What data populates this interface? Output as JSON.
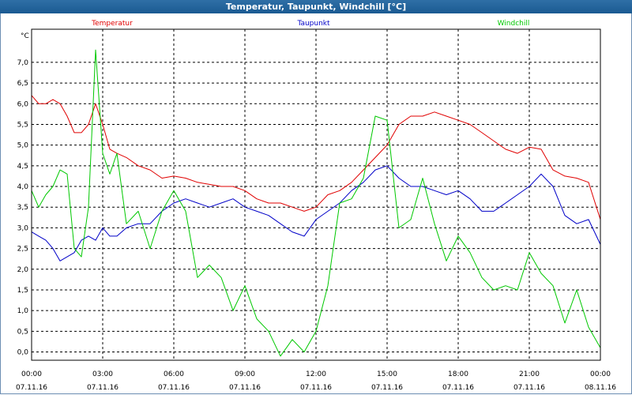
{
  "window": {
    "title": "Temperatur, Taupunkt, Windchill [°C]"
  },
  "chart_data": {
    "type": "line",
    "title": "Temperatur, Taupunkt, Windchill [°C]",
    "ylabel": "°C",
    "ylim": [
      -0.2,
      7.8
    ],
    "xlim": [
      0,
      24
    ],
    "y_ticks": [
      "0,0",
      "0,5",
      "1,0",
      "1,5",
      "2,0",
      "2,5",
      "3,0",
      "3,5",
      "4,0",
      "4,5",
      "5,0",
      "5,5",
      "6,0",
      "6,5",
      "7,0"
    ],
    "y_tick_values": [
      0,
      0.5,
      1,
      1.5,
      2,
      2.5,
      3,
      3.5,
      4,
      4.5,
      5,
      5.5,
      6,
      6.5,
      7
    ],
    "x_ticks": [
      {
        "x": 0,
        "time": "00:00",
        "date": "07.11.16"
      },
      {
        "x": 3,
        "time": "03:00",
        "date": "07.11.16"
      },
      {
        "x": 6,
        "time": "06:00",
        "date": "07.11.16"
      },
      {
        "x": 9,
        "time": "09:00",
        "date": "07.11.16"
      },
      {
        "x": 12,
        "time": "12:00",
        "date": "07.11.16"
      },
      {
        "x": 15,
        "time": "15:00",
        "date": "07.11.16"
      },
      {
        "x": 18,
        "time": "18:00",
        "date": "07.11.16"
      },
      {
        "x": 21,
        "time": "21:00",
        "date": "07.11.16"
      },
      {
        "x": 24,
        "time": "00:00",
        "date": "08.11.16"
      }
    ],
    "grid": true,
    "series": [
      {
        "name": "Temperatur",
        "color": "#e00000",
        "x": [
          0,
          0.3,
          0.6,
          0.9,
          1.2,
          1.5,
          1.8,
          2.1,
          2.4,
          2.7,
          3.0,
          3.3,
          3.6,
          4.0,
          4.5,
          5.0,
          5.5,
          6.0,
          6.5,
          7.0,
          7.5,
          8.0,
          8.5,
          9.0,
          9.5,
          10.0,
          10.5,
          11.0,
          11.5,
          12.0,
          12.5,
          13.0,
          13.5,
          14.0,
          14.5,
          15.0,
          15.5,
          16.0,
          16.5,
          17.0,
          17.5,
          18.0,
          18.5,
          19.0,
          19.5,
          20.0,
          20.5,
          21.0,
          21.5,
          22.0,
          22.5,
          23.0,
          23.5,
          24.0
        ],
        "y": [
          6.2,
          6.0,
          6.0,
          6.1,
          6.0,
          5.7,
          5.3,
          5.3,
          5.5,
          6.0,
          5.5,
          4.9,
          4.8,
          4.7,
          4.5,
          4.4,
          4.2,
          4.25,
          4.2,
          4.1,
          4.05,
          4.0,
          4.0,
          3.9,
          3.7,
          3.6,
          3.6,
          3.5,
          3.4,
          3.5,
          3.8,
          3.9,
          4.1,
          4.4,
          4.7,
          5.0,
          5.5,
          5.7,
          5.7,
          5.8,
          5.7,
          5.6,
          5.5,
          5.3,
          5.1,
          4.9,
          4.8,
          4.95,
          4.9,
          4.4,
          4.25,
          4.2,
          4.1,
          3.2
        ]
      },
      {
        "name": "Taupunkt",
        "color": "#0000c8",
        "x": [
          0,
          0.3,
          0.6,
          0.9,
          1.2,
          1.5,
          1.8,
          2.1,
          2.4,
          2.7,
          3.0,
          3.3,
          3.6,
          4.0,
          4.5,
          5.0,
          5.5,
          6.0,
          6.5,
          7.0,
          7.5,
          8.0,
          8.5,
          9.0,
          9.5,
          10.0,
          10.5,
          11.0,
          11.5,
          12.0,
          12.5,
          13.0,
          13.5,
          14.0,
          14.5,
          15.0,
          15.5,
          16.0,
          16.5,
          17.0,
          17.5,
          18.0,
          18.5,
          19.0,
          19.5,
          20.0,
          20.5,
          21.0,
          21.5,
          22.0,
          22.5,
          23.0,
          23.5,
          24.0
        ],
        "y": [
          2.9,
          2.8,
          2.7,
          2.5,
          2.2,
          2.3,
          2.4,
          2.7,
          2.8,
          2.7,
          3.0,
          2.8,
          2.8,
          3.0,
          3.1,
          3.1,
          3.4,
          3.6,
          3.7,
          3.6,
          3.5,
          3.6,
          3.7,
          3.5,
          3.4,
          3.3,
          3.1,
          2.9,
          2.8,
          3.2,
          3.4,
          3.6,
          3.9,
          4.1,
          4.4,
          4.5,
          4.2,
          4.0,
          4.0,
          3.9,
          3.8,
          3.9,
          3.7,
          3.4,
          3.4,
          3.6,
          3.8,
          4.0,
          4.3,
          4.0,
          3.3,
          3.1,
          3.2,
          2.6
        ]
      },
      {
        "name": "Windchill",
        "color": "#00c800",
        "x": [
          0,
          0.3,
          0.6,
          0.9,
          1.2,
          1.5,
          1.8,
          2.1,
          2.4,
          2.7,
          3.0,
          3.3,
          3.6,
          4.0,
          4.5,
          5.0,
          5.5,
          6.0,
          6.5,
          7.0,
          7.5,
          8.0,
          8.5,
          9.0,
          9.5,
          10.0,
          10.5,
          11.0,
          11.5,
          12.0,
          12.5,
          13.0,
          13.5,
          14.0,
          14.5,
          15.0,
          15.5,
          16.0,
          16.5,
          17.0,
          17.5,
          18.0,
          18.5,
          19.0,
          19.5,
          20.0,
          20.5,
          21.0,
          21.5,
          22.0,
          22.5,
          23.0,
          23.5,
          24.0
        ],
        "y": [
          3.9,
          3.5,
          3.8,
          4.0,
          4.4,
          4.3,
          2.5,
          2.3,
          3.5,
          7.3,
          4.8,
          4.3,
          4.8,
          3.1,
          3.4,
          2.5,
          3.4,
          3.9,
          3.4,
          1.8,
          2.1,
          1.8,
          1.0,
          1.6,
          0.8,
          0.5,
          -0.1,
          0.3,
          0.0,
          0.5,
          1.6,
          3.6,
          3.7,
          4.2,
          5.7,
          5.6,
          3.0,
          3.2,
          4.2,
          3.1,
          2.2,
          2.8,
          2.4,
          1.8,
          1.5,
          1.6,
          1.5,
          2.4,
          1.9,
          1.6,
          0.7,
          1.5,
          0.6,
          0.1
        ]
      }
    ]
  }
}
